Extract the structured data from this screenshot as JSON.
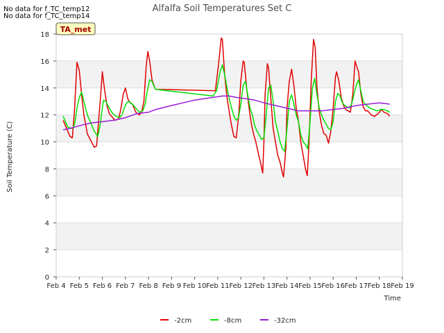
{
  "notes": [
    "No data for f_TC_temp12",
    "No data for f_TC_temp14"
  ],
  "site_badge": "TA_met",
  "chart_data": {
    "type": "line",
    "title": "Alfalfa Soil Temperatures Set C",
    "xlabel": "Time",
    "ylabel": "Soil Temperature (C)",
    "xlim": [
      4,
      19
    ],
    "ylim": [
      0,
      18
    ],
    "x_ticks": [
      4,
      5,
      6,
      7,
      8,
      9,
      10,
      11,
      12,
      13,
      14,
      15,
      16,
      17,
      18,
      19
    ],
    "x_tick_labels": [
      "Feb 4",
      "Feb 5",
      "Feb 6",
      "Feb 7",
      "Feb 8",
      "Feb 9",
      "Feb 10",
      "Feb 11",
      "Feb 12",
      "Feb 13",
      "Feb 14",
      "Feb 15",
      "Feb 16",
      "Feb 17",
      "Feb 18",
      "Feb 19"
    ],
    "y_ticks": [
      0,
      2,
      4,
      6,
      8,
      10,
      12,
      14,
      16,
      18
    ],
    "grid_bands": true,
    "legend_position": "bottom-center",
    "series": [
      {
        "name": "-2cm",
        "color": "#e00000",
        "points": [
          [
            4.3,
            11.6
          ],
          [
            4.45,
            11.0
          ],
          [
            4.6,
            10.4
          ],
          [
            4.7,
            10.3
          ],
          [
            4.8,
            12.5
          ],
          [
            4.9,
            15.9
          ],
          [
            5.0,
            15.3
          ],
          [
            5.1,
            13.5
          ],
          [
            5.2,
            12.0
          ],
          [
            5.35,
            10.6
          ],
          [
            5.5,
            10.1
          ],
          [
            5.65,
            9.6
          ],
          [
            5.75,
            9.7
          ],
          [
            5.85,
            11.8
          ],
          [
            5.95,
            14.0
          ],
          [
            6.0,
            15.2
          ],
          [
            6.1,
            13.8
          ],
          [
            6.2,
            12.7
          ],
          [
            6.3,
            12.1
          ],
          [
            6.4,
            11.9
          ],
          [
            6.55,
            11.6
          ],
          [
            6.7,
            11.7
          ],
          [
            6.8,
            12.4
          ],
          [
            6.9,
            13.5
          ],
          [
            7.0,
            14.0
          ],
          [
            7.1,
            13.2
          ],
          [
            7.2,
            12.9
          ],
          [
            7.3,
            12.8
          ],
          [
            7.45,
            12.2
          ],
          [
            7.6,
            12.0
          ],
          [
            7.7,
            12.2
          ],
          [
            7.8,
            13.0
          ],
          [
            7.9,
            15.6
          ],
          [
            7.97,
            16.7
          ],
          [
            8.05,
            16.0
          ],
          [
            8.15,
            14.6
          ],
          [
            8.3,
            13.9
          ],
          [
            10.9,
            13.8
          ],
          [
            11.05,
            16.0
          ],
          [
            11.15,
            17.7
          ],
          [
            11.2,
            17.6
          ],
          [
            11.3,
            15.0
          ],
          [
            11.4,
            13.3
          ],
          [
            11.5,
            12.2
          ],
          [
            11.6,
            11.2
          ],
          [
            11.7,
            10.4
          ],
          [
            11.8,
            10.3
          ],
          [
            11.9,
            11.8
          ],
          [
            12.0,
            14.5
          ],
          [
            12.1,
            16.0
          ],
          [
            12.15,
            15.9
          ],
          [
            12.25,
            14.0
          ],
          [
            12.35,
            12.6
          ],
          [
            12.45,
            11.4
          ],
          [
            12.55,
            10.6
          ],
          [
            12.65,
            10.0
          ],
          [
            12.75,
            9.2
          ],
          [
            12.85,
            8.5
          ],
          [
            12.95,
            7.7
          ],
          [
            13.0,
            10.0
          ],
          [
            13.05,
            13.5
          ],
          [
            13.15,
            15.8
          ],
          [
            13.2,
            15.5
          ],
          [
            13.3,
            13.2
          ],
          [
            13.4,
            11.0
          ],
          [
            13.5,
            10.0
          ],
          [
            13.6,
            9.0
          ],
          [
            13.7,
            8.5
          ],
          [
            13.8,
            7.7
          ],
          [
            13.85,
            7.4
          ],
          [
            13.95,
            9.5
          ],
          [
            14.0,
            12.5
          ],
          [
            14.1,
            14.5
          ],
          [
            14.2,
            15.4
          ],
          [
            14.3,
            14.2
          ],
          [
            14.4,
            12.5
          ],
          [
            14.5,
            11.5
          ],
          [
            14.6,
            10.0
          ],
          [
            14.7,
            9.0
          ],
          [
            14.8,
            8.0
          ],
          [
            14.88,
            7.5
          ],
          [
            14.95,
            9.8
          ],
          [
            15.05,
            14.5
          ],
          [
            15.15,
            17.6
          ],
          [
            15.22,
            17.0
          ],
          [
            15.3,
            14.0
          ],
          [
            15.4,
            12.2
          ],
          [
            15.5,
            11.2
          ],
          [
            15.6,
            10.6
          ],
          [
            15.7,
            10.5
          ],
          [
            15.8,
            9.9
          ],
          [
            15.9,
            10.8
          ],
          [
            16.0,
            12.5
          ],
          [
            16.1,
            14.8
          ],
          [
            16.15,
            15.2
          ],
          [
            16.25,
            14.5
          ],
          [
            16.35,
            13.3
          ],
          [
            16.45,
            12.7
          ],
          [
            16.55,
            12.4
          ],
          [
            16.65,
            12.3
          ],
          [
            16.75,
            12.2
          ],
          [
            16.85,
            13.5
          ],
          [
            16.95,
            16.0
          ],
          [
            17.0,
            15.7
          ],
          [
            17.1,
            15.2
          ],
          [
            17.2,
            13.6
          ],
          [
            17.3,
            12.6
          ],
          [
            17.4,
            12.3
          ],
          [
            17.5,
            12.3
          ],
          [
            17.65,
            12.0
          ],
          [
            17.8,
            11.9
          ],
          [
            17.95,
            12.1
          ],
          [
            18.1,
            12.4
          ],
          [
            18.2,
            12.2
          ],
          [
            18.35,
            12.1
          ],
          [
            18.45,
            11.9
          ]
        ]
      },
      {
        "name": "-8cm",
        "color": "#00e000",
        "points": [
          [
            4.3,
            11.9
          ],
          [
            4.5,
            11.1
          ],
          [
            4.7,
            11.0
          ],
          [
            4.8,
            11.3
          ],
          [
            4.9,
            12.5
          ],
          [
            5.0,
            13.3
          ],
          [
            5.1,
            13.7
          ],
          [
            5.2,
            13.0
          ],
          [
            5.35,
            12.0
          ],
          [
            5.5,
            11.4
          ],
          [
            5.65,
            10.8
          ],
          [
            5.8,
            10.4
          ],
          [
            5.9,
            11.2
          ],
          [
            6.0,
            12.5
          ],
          [
            6.05,
            13.1
          ],
          [
            6.15,
            13.0
          ],
          [
            6.3,
            12.5
          ],
          [
            6.45,
            12.1
          ],
          [
            6.6,
            11.9
          ],
          [
            6.75,
            11.8
          ],
          [
            6.85,
            12.0
          ],
          [
            6.95,
            12.5
          ],
          [
            7.05,
            12.9
          ],
          [
            7.15,
            13.0
          ],
          [
            7.3,
            12.8
          ],
          [
            7.45,
            12.5
          ],
          [
            7.6,
            12.2
          ],
          [
            7.75,
            12.3
          ],
          [
            7.85,
            12.8
          ],
          [
            7.95,
            13.8
          ],
          [
            8.05,
            14.6
          ],
          [
            8.15,
            14.5
          ],
          [
            8.3,
            13.9
          ],
          [
            10.8,
            13.4
          ],
          [
            10.95,
            13.8
          ],
          [
            11.1,
            15.2
          ],
          [
            11.2,
            15.7
          ],
          [
            11.3,
            15.0
          ],
          [
            11.4,
            14.0
          ],
          [
            11.5,
            13.2
          ],
          [
            11.6,
            12.5
          ],
          [
            11.7,
            11.9
          ],
          [
            11.8,
            11.6
          ],
          [
            11.9,
            11.8
          ],
          [
            12.0,
            12.8
          ],
          [
            12.1,
            14.2
          ],
          [
            12.2,
            14.5
          ],
          [
            12.3,
            13.5
          ],
          [
            12.4,
            12.5
          ],
          [
            12.5,
            12.0
          ],
          [
            12.6,
            11.2
          ],
          [
            12.7,
            10.8
          ],
          [
            12.8,
            10.5
          ],
          [
            12.9,
            10.2
          ],
          [
            13.0,
            10.3
          ],
          [
            13.1,
            12.0
          ],
          [
            13.2,
            14.0
          ],
          [
            13.3,
            14.2
          ],
          [
            13.4,
            13.0
          ],
          [
            13.5,
            11.5
          ],
          [
            13.6,
            10.8
          ],
          [
            13.7,
            10.0
          ],
          [
            13.8,
            9.5
          ],
          [
            13.9,
            9.3
          ],
          [
            14.0,
            11.0
          ],
          [
            14.1,
            13.0
          ],
          [
            14.2,
            13.5
          ],
          [
            14.3,
            12.8
          ],
          [
            14.4,
            12.0
          ],
          [
            14.5,
            11.5
          ],
          [
            14.6,
            10.5
          ],
          [
            14.7,
            10.0
          ],
          [
            14.8,
            9.8
          ],
          [
            14.9,
            9.5
          ],
          [
            15.0,
            11.5
          ],
          [
            15.1,
            14.0
          ],
          [
            15.2,
            14.7
          ],
          [
            15.3,
            13.5
          ],
          [
            15.4,
            12.5
          ],
          [
            15.5,
            12.0
          ],
          [
            15.6,
            11.6
          ],
          [
            15.7,
            11.3
          ],
          [
            15.8,
            11.0
          ],
          [
            15.9,
            10.9
          ],
          [
            16.0,
            11.5
          ],
          [
            16.1,
            13.0
          ],
          [
            16.2,
            13.6
          ],
          [
            16.3,
            13.4
          ],
          [
            16.4,
            12.9
          ],
          [
            16.5,
            12.7
          ],
          [
            16.6,
            12.6
          ],
          [
            16.7,
            12.5
          ],
          [
            16.8,
            12.8
          ],
          [
            16.9,
            13.5
          ],
          [
            17.0,
            14.2
          ],
          [
            17.1,
            14.6
          ],
          [
            17.2,
            13.8
          ],
          [
            17.3,
            13.0
          ],
          [
            17.45,
            12.7
          ],
          [
            17.6,
            12.5
          ],
          [
            17.75,
            12.4
          ],
          [
            17.9,
            12.3
          ],
          [
            18.05,
            12.4
          ],
          [
            18.2,
            12.4
          ],
          [
            18.35,
            12.3
          ],
          [
            18.45,
            12.2
          ]
        ]
      },
      {
        "name": "-32cm",
        "color": "#9a1ad6",
        "points": [
          [
            4.3,
            10.9
          ],
          [
            4.6,
            11.0
          ],
          [
            5.0,
            11.2
          ],
          [
            5.5,
            11.4
          ],
          [
            6.0,
            11.5
          ],
          [
            6.5,
            11.6
          ],
          [
            7.0,
            11.8
          ],
          [
            7.5,
            12.1
          ],
          [
            8.0,
            12.2
          ],
          [
            8.3,
            12.4
          ],
          [
            9.0,
            12.7
          ],
          [
            10.0,
            13.1
          ],
          [
            10.8,
            13.3
          ],
          [
            11.2,
            13.4
          ],
          [
            11.5,
            13.4
          ],
          [
            11.8,
            13.3
          ],
          [
            12.2,
            13.2
          ],
          [
            12.6,
            13.1
          ],
          [
            13.0,
            12.9
          ],
          [
            13.5,
            12.7
          ],
          [
            14.0,
            12.5
          ],
          [
            14.5,
            12.3
          ],
          [
            15.0,
            12.3
          ],
          [
            15.5,
            12.3
          ],
          [
            16.0,
            12.4
          ],
          [
            16.5,
            12.5
          ],
          [
            17.0,
            12.7
          ],
          [
            17.5,
            12.8
          ],
          [
            18.0,
            12.9
          ],
          [
            18.45,
            12.8
          ]
        ]
      }
    ]
  }
}
